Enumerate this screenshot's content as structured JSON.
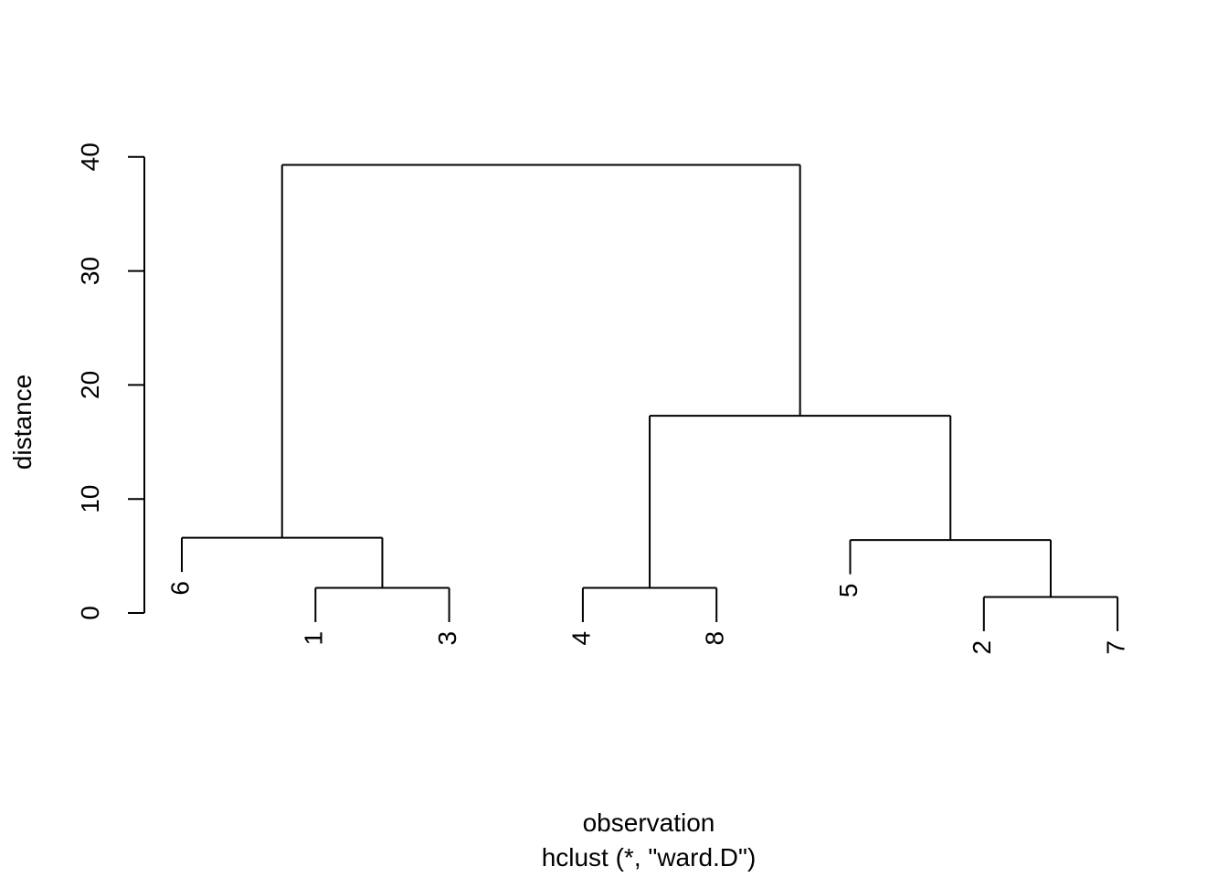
{
  "chart_data": {
    "type": "dendrogram",
    "title": "",
    "xlabel": "observation",
    "sub": "hclust (*, \"ward.D\")",
    "ylabel": "distance",
    "ylim": [
      0,
      40
    ],
    "yticks": [
      0,
      10,
      20,
      30,
      40
    ],
    "leaf_order": [
      "6",
      "1",
      "3",
      "4",
      "8",
      "5",
      "2",
      "7"
    ],
    "merges": [
      {
        "left": "leaf:2",
        "right": "leaf:7",
        "height": 1.4
      },
      {
        "left": "leaf:1",
        "right": "leaf:3",
        "height": 2.2
      },
      {
        "left": "leaf:4",
        "right": "leaf:8",
        "height": 2.2
      },
      {
        "left": "leaf:5",
        "right": "node:0",
        "height": 6.4
      },
      {
        "left": "leaf:6",
        "right": "node:1",
        "height": 6.6
      },
      {
        "left": "node:2",
        "right": "node:3",
        "height": 17.3
      },
      {
        "left": "node:4",
        "right": "node:5",
        "height": 39.3
      }
    ],
    "grid": false,
    "legend": "none"
  }
}
